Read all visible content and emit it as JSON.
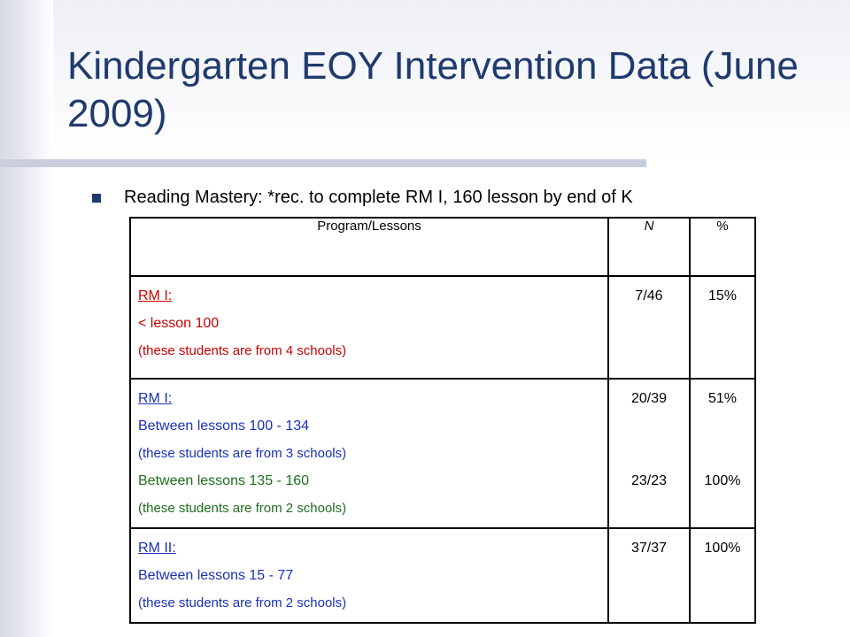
{
  "slide": {
    "title": "Kindergarten EOY Intervention Data (June 2009)",
    "bullet": "Reading Mastery: *rec. to complete RM I, 160 lesson by end of K"
  },
  "table": {
    "headers": [
      "Program/Lessons",
      "N",
      "%"
    ],
    "rows": [
      {
        "program": "RM I:",
        "line1": "< lesson 100",
        "note1": "(these students are from 4 schools)",
        "n1": "7/46",
        "pct1": "15%"
      },
      {
        "program": "RM I:",
        "line1": "Between lessons 100 - 134",
        "note1": "(these students are from 3 schools)",
        "line2": "Between lessons 135 - 160",
        "note2": "(these students are from 2 schools)",
        "n1": "20/39",
        "pct1": "51%",
        "n2": "23/23",
        "pct2": "100%"
      },
      {
        "program": "RM II:",
        "line1": "Between lessons 15 - 77",
        "note1": "(these students are from 2 schools)",
        "n1": "37/37",
        "pct1": "100%"
      }
    ]
  },
  "colors": {
    "title": "#1f3a6e",
    "row1_text": "#cc0000",
    "row2_text": "#1a30b8",
    "row2b_text": "#1d6e1d",
    "row3_text": "#1a30b8"
  }
}
